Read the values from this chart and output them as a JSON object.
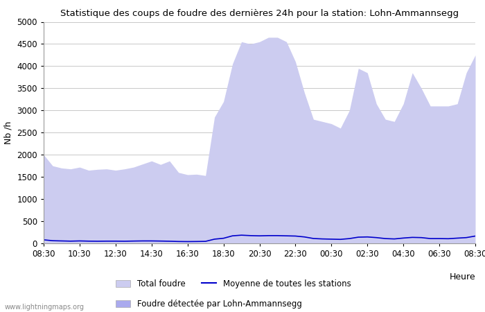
{
  "title": "Statistique des coups de foudre des dernières 24h pour la station: Lohn-Ammannsegg",
  "ylabel": "Nb /h",
  "xlabel_right": "Heure",
  "watermark": "www.lightningmaps.org",
  "x_ticks": [
    "08:30",
    "10:30",
    "12:30",
    "14:30",
    "16:30",
    "18:30",
    "20:30",
    "22:30",
    "00:30",
    "02:30",
    "04:30",
    "06:30",
    "08:30"
  ],
  "ylim": [
    0,
    5000
  ],
  "yticks": [
    0,
    500,
    1000,
    1500,
    2000,
    2500,
    3000,
    3500,
    4000,
    4500,
    5000
  ],
  "bg_color": "#ffffff",
  "grid_color": "#c8c8c8",
  "fill_total_color": "#ccccf0",
  "fill_station_color": "#aaaaee",
  "line_mean_color": "#0000cc",
  "total_foudre": [
    2000,
    1750,
    1700,
    1680,
    1720,
    1650,
    1670,
    1680,
    1650,
    1680,
    1720,
    1790,
    1860,
    1780,
    1860,
    1600,
    1550,
    1560,
    1530,
    2850,
    3200,
    4050,
    4550,
    4500,
    4550,
    4650,
    4650,
    4550,
    4100,
    3400,
    2800,
    2750,
    2700,
    2600,
    3000,
    3950,
    3850,
    3150,
    2800,
    2750,
    3150,
    3850,
    3500,
    3100,
    3100,
    3100,
    3150,
    3850,
    4250
  ],
  "station_foudre": [
    0,
    0,
    0,
    0,
    0,
    0,
    0,
    0,
    0,
    0,
    0,
    0,
    0,
    0,
    0,
    0,
    0,
    0,
    0,
    0,
    0,
    0,
    0,
    0,
    0,
    0,
    0,
    0,
    0,
    0,
    0,
    0,
    0,
    0,
    0,
    0,
    0,
    0,
    0,
    0,
    0,
    0,
    0,
    0,
    0,
    0,
    0,
    0,
    0
  ],
  "mean_line": [
    80,
    60,
    55,
    50,
    55,
    50,
    48,
    50,
    50,
    48,
    52,
    55,
    55,
    52,
    48,
    42,
    40,
    42,
    45,
    95,
    115,
    170,
    185,
    175,
    170,
    175,
    175,
    170,
    165,
    145,
    110,
    100,
    95,
    90,
    108,
    140,
    145,
    130,
    108,
    100,
    120,
    135,
    130,
    108,
    108,
    105,
    118,
    130,
    165
  ]
}
